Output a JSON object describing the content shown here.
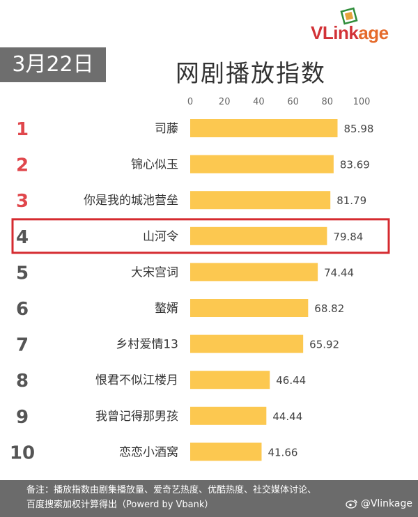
{
  "header": {
    "date": "3月22日",
    "title": "网剧播放指数"
  },
  "logo": {
    "text_v": "VL",
    "text_mid": "ink",
    "text_age": "age"
  },
  "colors": {
    "bar": "#fcc850",
    "rank_top": "#e0474c",
    "rank_other": "#555555",
    "highlight_box": "#d52a2f",
    "date_badge": "#6e6e6e",
    "footer": "#6b6b6b"
  },
  "chart_data": {
    "type": "bar",
    "orientation": "horizontal",
    "title": "网剧播放指数",
    "xlim": [
      0,
      100
    ],
    "x_ticks": [
      "0",
      "20",
      "40",
      "60",
      "80",
      "100"
    ],
    "ranks": [
      "1",
      "2",
      "3",
      "4",
      "5",
      "6",
      "7",
      "8",
      "9",
      "10"
    ],
    "categories": [
      "司藤",
      "锦心似玉",
      "你是我的城池营垒",
      "山河令",
      "大宋宫词",
      "螯婿",
      "乡村爱情13",
      "恨君不似江楼月",
      "我曾记得那男孩",
      "恋恋小酒窝"
    ],
    "values": [
      85.98,
      83.69,
      81.79,
      79.84,
      74.44,
      68.82,
      65.92,
      46.44,
      44.44,
      41.66
    ],
    "value_labels": [
      "85.98",
      "83.69",
      "81.79",
      "79.84",
      "74.44",
      "68.82",
      "65.92",
      "46.44",
      "44.44",
      "41.66"
    ],
    "highlighted_rank": 4,
    "grid": false,
    "legend": "none"
  },
  "footer": {
    "line1": "备注：播放指数由剧集播放量、爱奇艺热度、优酷热度、社交媒体讨论、",
    "line2": "百度搜索加权计算得出（Powerd by Vbank）",
    "watermark": "@Vlinkage"
  }
}
